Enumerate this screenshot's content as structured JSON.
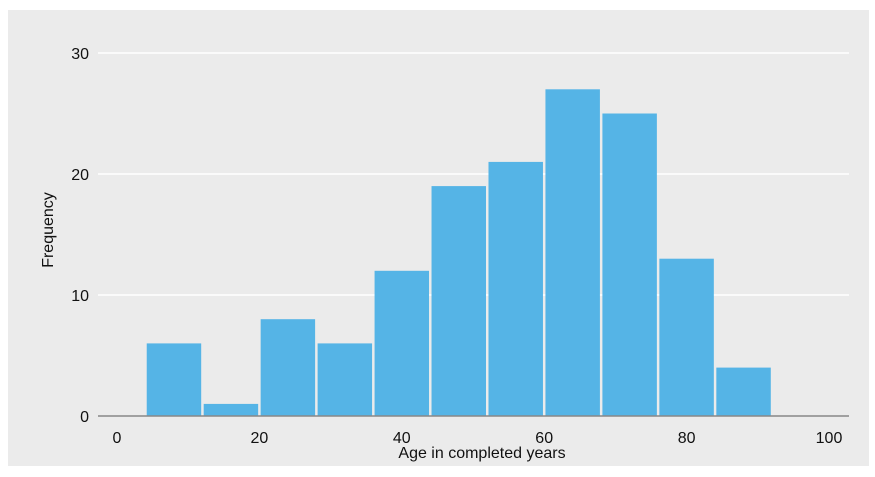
{
  "chart_data": {
    "type": "bar",
    "title": "",
    "xlabel": "Age in completed years",
    "ylabel": "Frequency",
    "bin_edges": [
      4,
      12,
      20,
      28,
      36,
      44,
      52,
      60,
      68,
      76,
      84,
      92
    ],
    "values": [
      6,
      1,
      8,
      6,
      12,
      19,
      21,
      27,
      25,
      13,
      4
    ],
    "xlim": [
      0,
      100
    ],
    "ylim": [
      0,
      30
    ],
    "x_ticks": [
      "0",
      "20",
      "40",
      "60",
      "80",
      "100"
    ],
    "x_tick_values": [
      0,
      20,
      40,
      60,
      80,
      100
    ],
    "y_ticks": [
      "0",
      "10",
      "20",
      "30"
    ],
    "y_tick_values": [
      0,
      10,
      20,
      30
    ],
    "grid": "horizontal",
    "colors": {
      "bar": "#55b4e6",
      "panel": "#ebebeb",
      "grid": "#ffffff",
      "axis": "#888888"
    }
  }
}
